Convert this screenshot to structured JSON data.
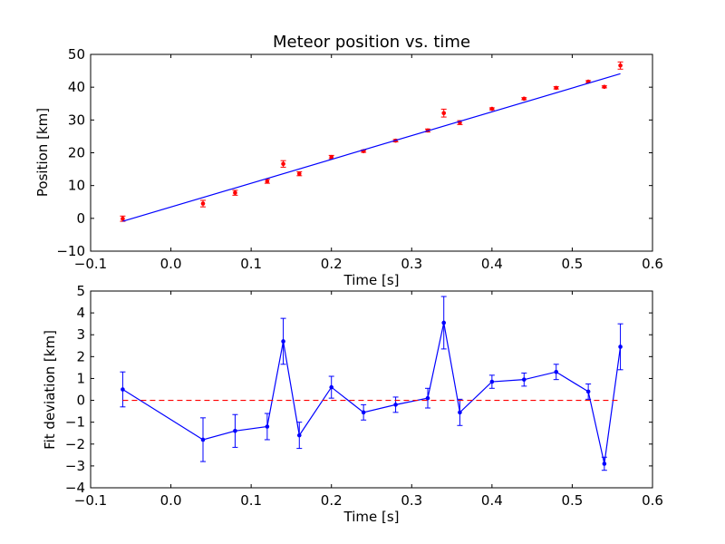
{
  "chart_data": [
    {
      "type": "scatter",
      "title": "Meteor position vs. time",
      "xlabel": "Time [s]",
      "ylabel": "Position [km]",
      "xlim": [
        -0.1,
        0.6
      ],
      "ylim": [
        -10,
        50
      ],
      "xticks": [
        "−0.1",
        "0.0",
        "0.1",
        "0.2",
        "0.3",
        "0.4",
        "0.5",
        "0.6"
      ],
      "yticks": [
        "−10",
        "0",
        "10",
        "20",
        "30",
        "40",
        "50"
      ],
      "series": [
        {
          "kind": "errorbar-points",
          "color": "#ff0000",
          "x": [
            -0.06,
            0.04,
            0.08,
            0.12,
            0.14,
            0.16,
            0.2,
            0.24,
            0.28,
            0.32,
            0.34,
            0.36,
            0.4,
            0.44,
            0.48,
            0.52,
            0.54,
            0.56
          ],
          "y": [
            -0.1,
            4.5,
            7.8,
            11.3,
            16.6,
            13.6,
            18.7,
            20.5,
            23.7,
            26.8,
            32.1,
            29.2,
            33.4,
            36.5,
            39.8,
            41.7,
            40.1,
            46.6
          ],
          "yerr": [
            0.8,
            1.0,
            0.75,
            0.6,
            1.0,
            0.6,
            0.5,
            0.35,
            0.35,
            0.45,
            1.2,
            0.6,
            0.3,
            0.3,
            0.35,
            0.3,
            0.3,
            1.1
          ]
        },
        {
          "kind": "fit-line",
          "color": "#0000ff",
          "x": [
            -0.06,
            0.56
          ],
          "y": [
            -0.9,
            44.1
          ]
        }
      ]
    },
    {
      "type": "line",
      "title": "",
      "xlabel": "Time [s]",
      "ylabel": "Fit deviation [km]",
      "xlim": [
        -0.1,
        0.6
      ],
      "ylim": [
        -4,
        5
      ],
      "xticks": [
        "−0.1",
        "0.0",
        "0.1",
        "0.2",
        "0.3",
        "0.4",
        "0.5",
        "0.6"
      ],
      "yticks": [
        "−4",
        "−3",
        "−2",
        "−1",
        "0",
        "1",
        "2",
        "3",
        "4",
        "5"
      ],
      "series": [
        {
          "kind": "errorbar-line",
          "color": "#0000ff",
          "x": [
            -0.06,
            0.04,
            0.08,
            0.12,
            0.14,
            0.16,
            0.2,
            0.24,
            0.28,
            0.32,
            0.34,
            0.36,
            0.4,
            0.44,
            0.48,
            0.52,
            0.54,
            0.56
          ],
          "y": [
            0.5,
            -1.8,
            -1.4,
            -1.2,
            2.7,
            -1.6,
            0.6,
            -0.55,
            -0.2,
            0.1,
            3.55,
            -0.55,
            0.85,
            0.95,
            1.3,
            0.4,
            -2.9,
            2.45
          ],
          "yerr": [
            0.8,
            1.0,
            0.75,
            0.6,
            1.05,
            0.6,
            0.5,
            0.35,
            0.35,
            0.45,
            1.2,
            0.6,
            0.3,
            0.3,
            0.35,
            0.35,
            0.3,
            1.05
          ]
        },
        {
          "kind": "zero-reference",
          "color": "#ff0000",
          "dashed": true,
          "y": 0
        }
      ]
    }
  ]
}
